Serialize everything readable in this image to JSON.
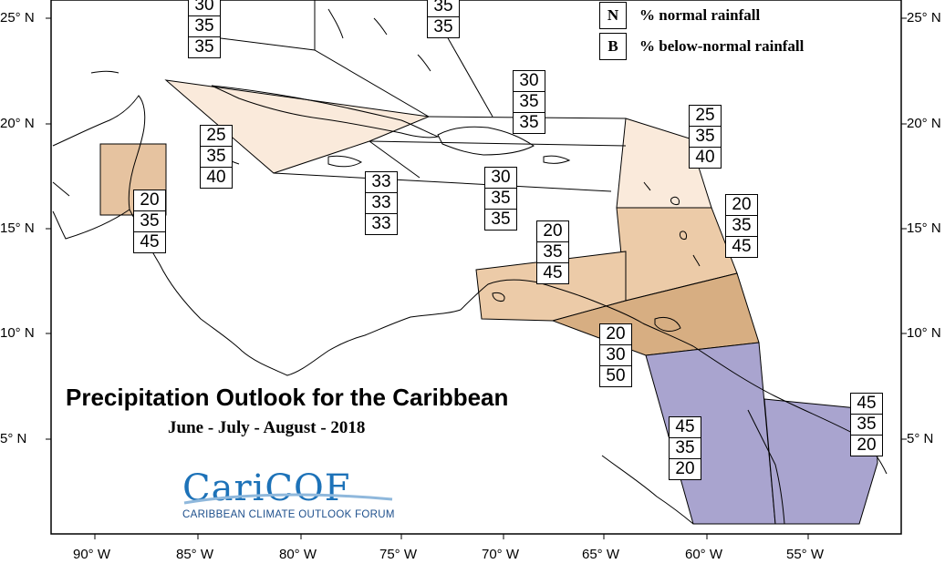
{
  "map": {
    "title": "Precipitation Outlook for the Caribbean",
    "subtitle": "June - July - August - 2018",
    "axes": {
      "lon_ticks": [
        "90° W",
        "85° W",
        "80° W",
        "75° W",
        "70° W",
        "65° W",
        "60° W",
        "55° W"
      ],
      "lat_ticks": [
        "25° N",
        "20° N",
        "15° N",
        "10° N",
        "5° N"
      ]
    },
    "legend": {
      "items": [
        {
          "key": "N",
          "label": "% normal rainfall"
        },
        {
          "key": "B",
          "label": "% below-normal rainfall"
        }
      ]
    },
    "logo": {
      "name": "CariCOF",
      "tagline": "CARIBBEAN CLIMATE OUTLOOK FORUM"
    },
    "colors": {
      "below_light": "#faeadb",
      "below_moderate": "#eccba8",
      "below_strong": "#d7ae82",
      "above": "#a9a4cf",
      "neutral": "#ffffff"
    },
    "forecast_boxes": [
      {
        "region": "bahamas-north",
        "values": [
          "30",
          "35",
          "35"
        ]
      },
      {
        "region": "turks-caicos",
        "values": [
          "35",
          "35"
        ]
      },
      {
        "region": "cuba",
        "values": [
          "25",
          "35",
          "40"
        ]
      },
      {
        "region": "belize",
        "values": [
          "20",
          "35",
          "45"
        ]
      },
      {
        "region": "jamaica",
        "values": [
          "33",
          "33",
          "33"
        ]
      },
      {
        "region": "hispaniola-north",
        "values": [
          "30",
          "35",
          "35"
        ]
      },
      {
        "region": "hispaniola-south",
        "values": [
          "30",
          "35",
          "35"
        ]
      },
      {
        "region": "leeward-islands",
        "values": [
          "25",
          "35",
          "40"
        ]
      },
      {
        "region": "windward-islands",
        "values": [
          "20",
          "35",
          "45"
        ]
      },
      {
        "region": "abc-islands",
        "values": [
          "20",
          "35",
          "45"
        ]
      },
      {
        "region": "trinidad-tobago",
        "values": [
          "20",
          "30",
          "50"
        ]
      },
      {
        "region": "guyana",
        "values": [
          "45",
          "35",
          "20"
        ]
      },
      {
        "region": "suriname-french-guiana",
        "values": [
          "45",
          "35",
          "20"
        ]
      }
    ]
  }
}
